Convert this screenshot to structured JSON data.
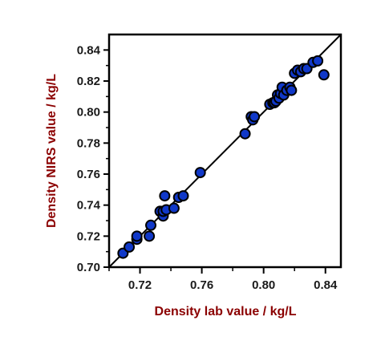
{
  "chart_data": {
    "type": "scatter",
    "xlabel": "Density lab value / kg/L",
    "ylabel": "Density NIRS value / kg/L",
    "xlim": [
      0.7,
      0.85
    ],
    "ylim": [
      0.7,
      0.85
    ],
    "x_ticks": [
      "0.72",
      "0.76",
      "0.80",
      "0.84"
    ],
    "y_ticks": [
      "0.70",
      "0.72",
      "0.74",
      "0.76",
      "0.78",
      "0.80",
      "0.82",
      "0.84"
    ],
    "grid": false,
    "reference_line": {
      "type": "identity",
      "color": "#000000"
    },
    "marker_color": "#1038c8",
    "marker_edge_color": "#000000",
    "series": [
      {
        "points": [
          [
            0.709,
            0.709
          ],
          [
            0.713,
            0.713
          ],
          [
            0.718,
            0.718
          ],
          [
            0.718,
            0.72
          ],
          [
            0.726,
            0.72
          ],
          [
            0.727,
            0.727
          ],
          [
            0.733,
            0.736
          ],
          [
            0.735,
            0.733
          ],
          [
            0.735,
            0.736
          ],
          [
            0.736,
            0.746
          ],
          [
            0.737,
            0.737
          ],
          [
            0.742,
            0.738
          ],
          [
            0.745,
            0.745
          ],
          [
            0.748,
            0.746
          ],
          [
            0.759,
            0.761
          ],
          [
            0.788,
            0.786
          ],
          [
            0.792,
            0.797
          ],
          [
            0.793,
            0.795
          ],
          [
            0.794,
            0.797
          ],
          [
            0.804,
            0.805
          ],
          [
            0.806,
            0.806
          ],
          [
            0.807,
            0.806
          ],
          [
            0.808,
            0.807
          ],
          [
            0.809,
            0.811
          ],
          [
            0.81,
            0.809
          ],
          [
            0.811,
            0.812
          ],
          [
            0.812,
            0.816
          ],
          [
            0.813,
            0.811
          ],
          [
            0.815,
            0.814
          ],
          [
            0.817,
            0.816
          ],
          [
            0.818,
            0.814
          ],
          [
            0.82,
            0.825
          ],
          [
            0.822,
            0.827
          ],
          [
            0.824,
            0.826
          ],
          [
            0.826,
            0.828
          ],
          [
            0.828,
            0.828
          ],
          [
            0.832,
            0.832
          ],
          [
            0.835,
            0.833
          ],
          [
            0.839,
            0.824
          ]
        ]
      }
    ]
  }
}
